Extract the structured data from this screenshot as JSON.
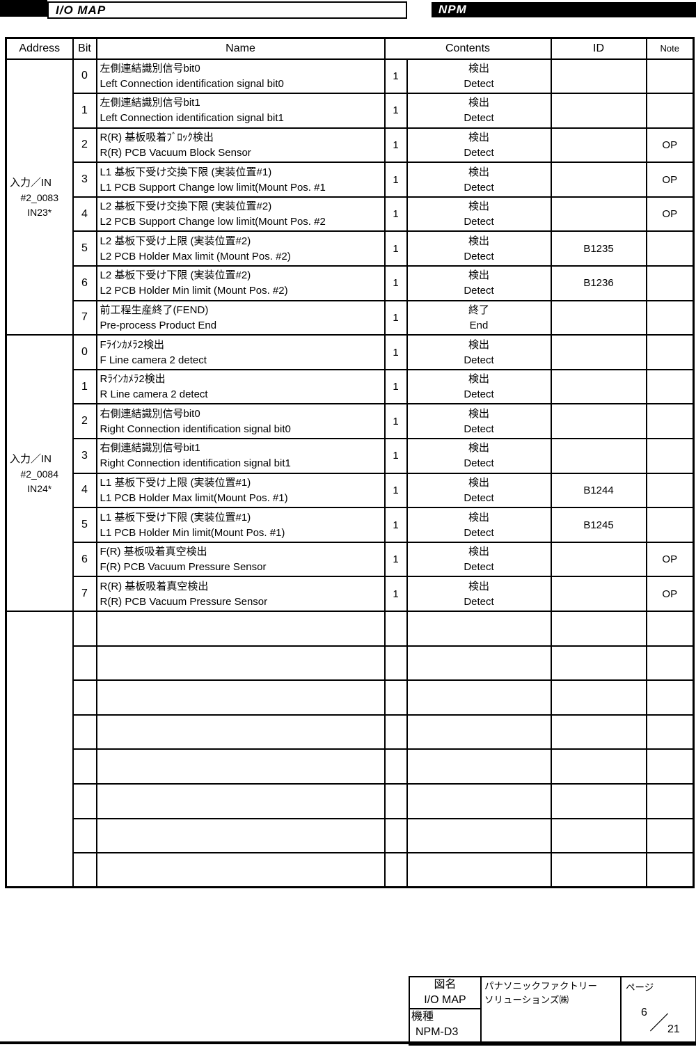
{
  "header": {
    "left_tab": "I/O MAP",
    "right_tab": "NPM"
  },
  "table": {
    "columns": {
      "address": "Address",
      "bit": "Bit",
      "name": "Name",
      "contents": "Contents",
      "id": "ID",
      "note": "Note"
    },
    "groups": [
      {
        "address_lines": [
          "入力／IN",
          "#2_0083",
          "IN23*"
        ],
        "rows": [
          {
            "bit": "0",
            "name_jp": "左側連結識別信号bit0",
            "name_en": "Left Connection identification signal bit0",
            "value": "1",
            "contents_jp": "検出",
            "contents_en": "Detect",
            "id": "",
            "note": ""
          },
          {
            "bit": "1",
            "name_jp": "左側連結識別信号bit1",
            "name_en": "Left Connection identification signal bit1",
            "value": "1",
            "contents_jp": "検出",
            "contents_en": "Detect",
            "id": "",
            "note": ""
          },
          {
            "bit": "2",
            "name_jp": "R(R) 基板吸着ﾌﾞﾛｯｸ検出",
            "name_en": "R(R) PCB Vacuum Block Sensor",
            "value": "1",
            "contents_jp": "検出",
            "contents_en": "Detect",
            "id": "",
            "note": "OP"
          },
          {
            "bit": "3",
            "name_jp": "L1 基板下受け交換下限 (実装位置#1)",
            "name_en": "L1 PCB Support Change low limit(Mount Pos. #1",
            "value": "1",
            "contents_jp": "検出",
            "contents_en": "Detect",
            "id": "",
            "note": "OP"
          },
          {
            "bit": "4",
            "name_jp": "L2 基板下受け交換下限 (実装位置#2)",
            "name_en": "L2 PCB Support Change low limit(Mount Pos. #2",
            "value": "1",
            "contents_jp": "検出",
            "contents_en": "Detect",
            "id": "",
            "note": "OP"
          },
          {
            "bit": "5",
            "name_jp": "L2 基板下受け上限 (実装位置#2)",
            "name_en": "L2 PCB Holder Max limit (Mount Pos. #2)",
            "value": "1",
            "contents_jp": "検出",
            "contents_en": "Detect",
            "id": "B1235",
            "note": ""
          },
          {
            "bit": "6",
            "name_jp": "L2 基板下受け下限 (実装位置#2)",
            "name_en": "L2 PCB Holder Min limit (Mount Pos. #2)",
            "value": "1",
            "contents_jp": "検出",
            "contents_en": "Detect",
            "id": "B1236",
            "note": ""
          },
          {
            "bit": "7",
            "name_jp": "前工程生産終了(FEND)",
            "name_en": "Pre-process Product End",
            "value": "1",
            "contents_jp": "終了",
            "contents_en": "End",
            "id": "",
            "note": ""
          }
        ]
      },
      {
        "address_lines": [
          "入力／IN",
          "#2_0084",
          "IN24*"
        ],
        "rows": [
          {
            "bit": "0",
            "name_jp": "Fﾗｲﾝｶﾒﾗ2検出",
            "name_en": "F Line camera 2 detect",
            "value": "1",
            "contents_jp": "検出",
            "contents_en": "Detect",
            "id": "",
            "note": ""
          },
          {
            "bit": "1",
            "name_jp": "Rﾗｲﾝｶﾒﾗ2検出",
            "name_en": "R Line camera 2 detect",
            "value": "1",
            "contents_jp": "検出",
            "contents_en": "Detect",
            "id": "",
            "note": ""
          },
          {
            "bit": "2",
            "name_jp": "右側連結識別信号bit0",
            "name_en": "Right Connection identification signal bit0",
            "value": "1",
            "contents_jp": "検出",
            "contents_en": "Detect",
            "id": "",
            "note": ""
          },
          {
            "bit": "3",
            "name_jp": "右側連結識別信号bit1",
            "name_en": "Right Connection identification signal bit1",
            "value": "1",
            "contents_jp": "検出",
            "contents_en": "Detect",
            "id": "",
            "note": ""
          },
          {
            "bit": "4",
            "name_jp": "L1 基板下受け上限 (実装位置#1)",
            "name_en": "L1 PCB Holder Max limit(Mount Pos. #1)",
            "value": "1",
            "contents_jp": "検出",
            "contents_en": "Detect",
            "id": "B1244",
            "note": ""
          },
          {
            "bit": "5",
            "name_jp": "L1 基板下受け下限 (実装位置#1)",
            "name_en": "L1 PCB Holder Min limit(Mount Pos. #1)",
            "value": "1",
            "contents_jp": "検出",
            "contents_en": "Detect",
            "id": "B1245",
            "note": ""
          },
          {
            "bit": "6",
            "name_jp": "F(R) 基板吸着真空検出",
            "name_en": "F(R) PCB Vacuum Pressure Sensor",
            "value": "1",
            "contents_jp": "検出",
            "contents_en": "Detect",
            "id": "",
            "note": "OP"
          },
          {
            "bit": "7",
            "name_jp": "R(R) 基板吸着真空検出",
            "name_en": "R(R) PCB Vacuum Pressure Sensor",
            "value": "1",
            "contents_jp": "検出",
            "contents_en": "Detect",
            "id": "",
            "note": "OP"
          }
        ]
      },
      {
        "address_lines": [],
        "rows": [
          {
            "bit": "",
            "name_jp": "",
            "name_en": "",
            "value": "",
            "contents_jp": "",
            "contents_en": "",
            "id": "",
            "note": ""
          },
          {
            "bit": "",
            "name_jp": "",
            "name_en": "",
            "value": "",
            "contents_jp": "",
            "contents_en": "",
            "id": "",
            "note": ""
          },
          {
            "bit": "",
            "name_jp": "",
            "name_en": "",
            "value": "",
            "contents_jp": "",
            "contents_en": "",
            "id": "",
            "note": ""
          },
          {
            "bit": "",
            "name_jp": "",
            "name_en": "",
            "value": "",
            "contents_jp": "",
            "contents_en": "",
            "id": "",
            "note": ""
          },
          {
            "bit": "",
            "name_jp": "",
            "name_en": "",
            "value": "",
            "contents_jp": "",
            "contents_en": "",
            "id": "",
            "note": ""
          },
          {
            "bit": "",
            "name_jp": "",
            "name_en": "",
            "value": "",
            "contents_jp": "",
            "contents_en": "",
            "id": "",
            "note": ""
          },
          {
            "bit": "",
            "name_jp": "",
            "name_en": "",
            "value": "",
            "contents_jp": "",
            "contents_en": "",
            "id": "",
            "note": ""
          },
          {
            "bit": "",
            "name_jp": "",
            "name_en": "",
            "value": "",
            "contents_jp": "",
            "contents_en": "",
            "id": "",
            "note": ""
          }
        ]
      }
    ]
  },
  "footer": {
    "zumei_label": "図名",
    "zumei_value": "I/O MAP",
    "kishu_label": "機種",
    "kishu_value": "NPM-D3",
    "company_line1": "パナソニックファクトリー",
    "company_line2": "ソリューションズ㈱",
    "page_label": "ページ",
    "page_current": "6",
    "page_separator": "／",
    "page_total": "21"
  }
}
